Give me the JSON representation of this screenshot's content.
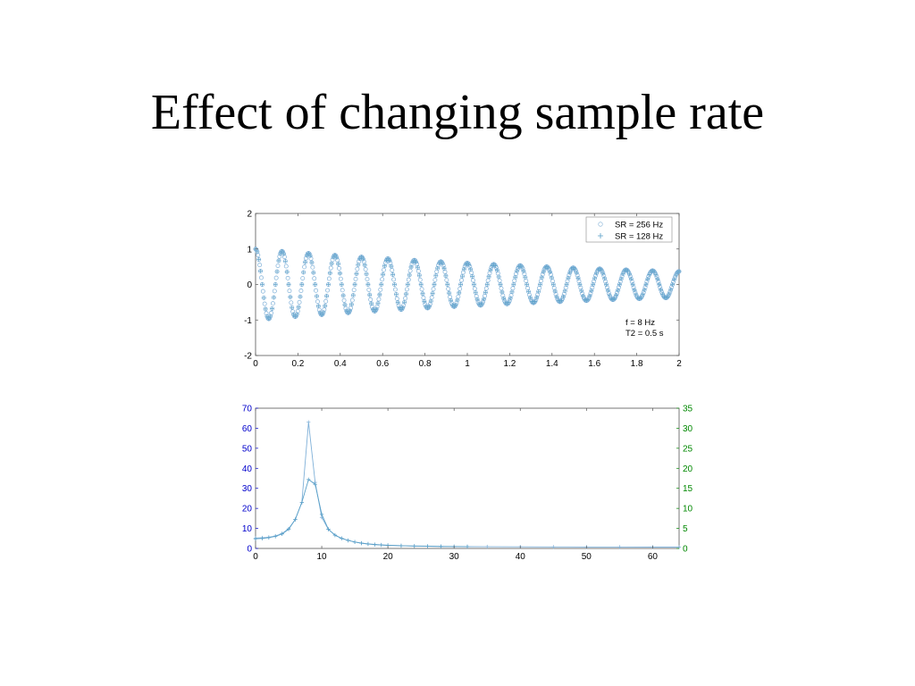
{
  "slide": {
    "title": "Effect of changing sample rate"
  },
  "colors": {
    "left_axis": "#0000cc",
    "right_axis": "#008800",
    "series_256": "#7fb0d8",
    "series_128": "#5aa0c8"
  },
  "chart_data": [
    {
      "type": "scatter",
      "title": "",
      "xlabel": "",
      "ylabel": "",
      "xlim": [
        0,
        2
      ],
      "ylim": [
        -2,
        2
      ],
      "xticks": [
        "0",
        "0.2",
        "0.4",
        "0.6",
        "0.8",
        "1",
        "1.2",
        "1.4",
        "1.6",
        "1.8",
        "2"
      ],
      "yticks": [
        "-2",
        "-1",
        "0",
        "1",
        "2"
      ],
      "legend_placement": "top-right",
      "annotation": [
        "f = 8 Hz",
        "T2 = 0.5 s"
      ],
      "signal": {
        "frequency_hz": 8,
        "t2_s": 0.5,
        "amplitude": 1
      },
      "series": [
        {
          "name": "SR = 256 Hz",
          "marker": "circle",
          "sample_rate_hz": 256
        },
        {
          "name": "SR = 128 Hz",
          "marker": "plus",
          "sample_rate_hz": 128
        }
      ]
    },
    {
      "type": "line",
      "title": "",
      "xlabel": "",
      "ylabel": "",
      "xlim": [
        0,
        64
      ],
      "ylim_left": [
        0,
        70
      ],
      "ylim_right": [
        0,
        35
      ],
      "xticks": [
        "0",
        "10",
        "20",
        "30",
        "40",
        "50",
        "60"
      ],
      "yticks_left": [
        "0",
        "10",
        "20",
        "30",
        "40",
        "50",
        "60",
        "70"
      ],
      "yticks_right": [
        "0",
        "5",
        "10",
        "15",
        "20",
        "25",
        "30",
        "35"
      ],
      "series": [
        {
          "name": "SR = 256 Hz",
          "axis": "left",
          "marker": "plus",
          "x": [
            0,
            1,
            2,
            3,
            4,
            5,
            6,
            7,
            8,
            9,
            10,
            11,
            12,
            13,
            14,
            15,
            16,
            17,
            18,
            19,
            20,
            22,
            24,
            26,
            28,
            30,
            32,
            35,
            40,
            45,
            50,
            55,
            60,
            64
          ],
          "y": [
            5.2,
            5.3,
            5.6,
            6.2,
            7.4,
            9.8,
            14.5,
            23,
            63,
            33,
            15.5,
            9.5,
            6.7,
            5.1,
            4.0,
            3.2,
            2.7,
            2.3,
            2.0,
            1.8,
            1.6,
            1.4,
            1.2,
            1.1,
            1.0,
            0.95,
            0.9,
            0.85,
            0.8,
            0.75,
            0.72,
            0.7,
            0.68,
            0.67
          ]
        },
        {
          "name": "SR = 128 Hz",
          "axis": "right",
          "marker": "plus",
          "x": [
            0,
            1,
            2,
            3,
            4,
            5,
            6,
            7,
            8,
            9,
            10,
            11,
            12,
            13,
            14,
            15,
            16,
            17,
            18,
            19,
            20,
            22,
            24,
            26,
            28,
            30,
            32
          ],
          "y": [
            2.4,
            2.5,
            2.7,
            3.0,
            3.6,
            4.8,
            7.2,
            11.5,
            17.2,
            16.0,
            8.5,
            4.8,
            3.3,
            2.5,
            2.0,
            1.6,
            1.3,
            1.1,
            0.95,
            0.85,
            0.78,
            0.68,
            0.6,
            0.55,
            0.5,
            0.48,
            0.47
          ]
        }
      ]
    }
  ]
}
